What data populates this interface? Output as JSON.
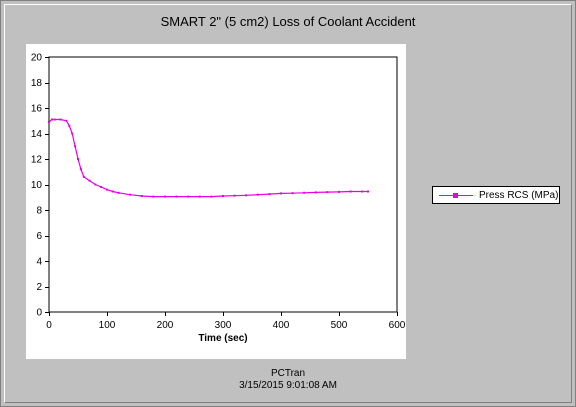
{
  "chart_data": {
    "type": "line",
    "title": "SMART 2\" (5 cm2) Loss of Coolant Accident",
    "xlabel": "Time (sec)",
    "ylabel": "",
    "xlim": [
      0,
      600
    ],
    "ylim": [
      0,
      20
    ],
    "xticks": [
      "0",
      "100",
      "200",
      "300",
      "400",
      "500",
      "600"
    ],
    "yticks": [
      "0",
      "2",
      "4",
      "6",
      "8",
      "10",
      "12",
      "14",
      "16",
      "18",
      "20"
    ],
    "grid": true,
    "legend_placement": "right",
    "series": [
      {
        "name": "Press RCS (MPa)",
        "color": "#e800e8",
        "x": [
          0,
          5,
          10,
          20,
          30,
          35,
          40,
          45,
          50,
          55,
          60,
          70,
          80,
          90,
          100,
          110,
          120,
          140,
          160,
          180,
          200,
          220,
          240,
          260,
          280,
          300,
          320,
          340,
          360,
          380,
          400,
          420,
          440,
          460,
          480,
          500,
          520,
          540,
          550
        ],
        "y": [
          14.9,
          15.1,
          15.1,
          15.1,
          15.0,
          14.6,
          14.0,
          13.0,
          12.0,
          11.2,
          10.6,
          10.3,
          10.0,
          9.8,
          9.6,
          9.45,
          9.35,
          9.2,
          9.1,
          9.05,
          9.05,
          9.05,
          9.05,
          9.05,
          9.05,
          9.1,
          9.12,
          9.15,
          9.2,
          9.25,
          9.3,
          9.32,
          9.35,
          9.38,
          9.4,
          9.42,
          9.45,
          9.45,
          9.45
        ]
      }
    ]
  },
  "footer": {
    "program": "PCTran",
    "timestamp": "3/15/2015 9:01:08 AM"
  }
}
